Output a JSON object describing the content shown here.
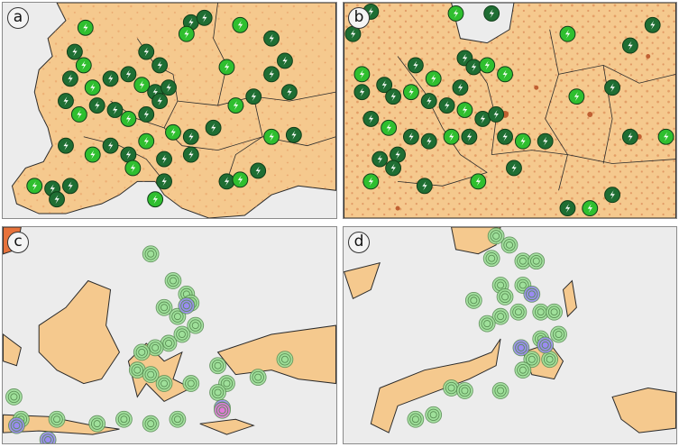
{
  "panels": [
    {
      "id": "a",
      "label": "a",
      "map": "europe",
      "marker_style": "green-lightning"
    },
    {
      "id": "b",
      "label": "b",
      "map": "europe",
      "marker_style": "green-lightning"
    },
    {
      "id": "c",
      "label": "c",
      "map": "indonesia",
      "marker_style": "concentric-rings"
    },
    {
      "id": "d",
      "label": "d",
      "map": "sulawesi",
      "marker_style": "concentric-rings"
    }
  ],
  "colors": {
    "land": "#f5c98e",
    "sea": "#ececec",
    "border": "#2a2a2a",
    "hotspot": "#b4471c",
    "marker_dark_green": "#1f6e33",
    "marker_bright_green": "#2fbf2f",
    "ring_light_green": "#9fe09a",
    "ring_purple": "#9a8cf0",
    "ring_pink": "#e07bd8"
  }
}
